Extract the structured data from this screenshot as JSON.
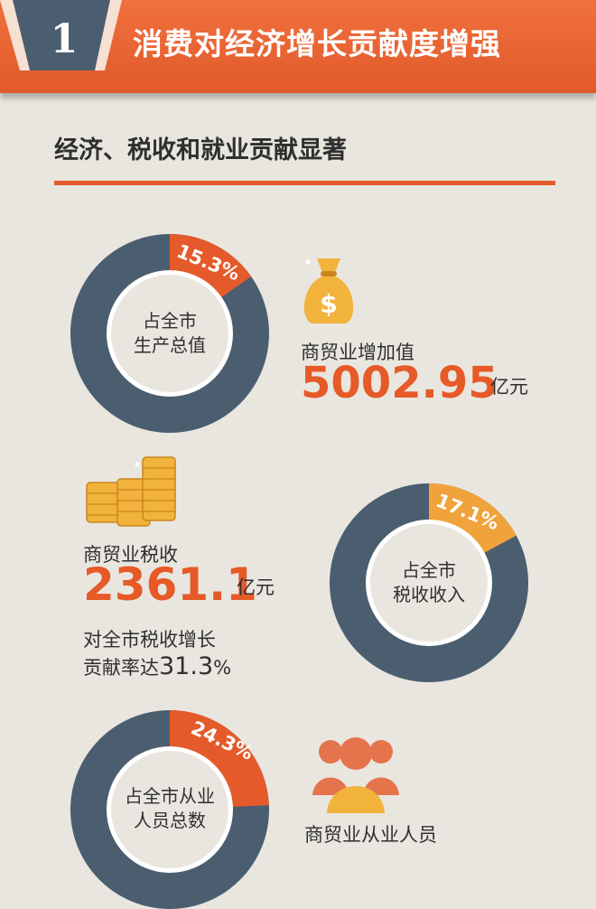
{
  "header": {
    "badge_number": "1",
    "title": "消费对经济增长贡献度增强"
  },
  "section": {
    "title": "经济、税收和就业贡献显著"
  },
  "metrics": [
    {
      "donut_percent_label": "15.3%",
      "share": 0.153,
      "donut_center_line1": "占全市",
      "donut_center_line2": "生产总值",
      "name": "商贸业增加值",
      "value": "5002.95",
      "unit": "亿元"
    },
    {
      "donut_percent_label": "17.1%",
      "share": 0.171,
      "donut_center_line1": "占全市",
      "donut_center_line2": "税收收入",
      "name": "商贸业税收",
      "value": "2361.1",
      "unit": "亿元",
      "note_line1": "对全市税收增长",
      "note_line2_prefix": "贡献率达",
      "note_value": "31.3",
      "note_unit": "%"
    },
    {
      "donut_percent_label": "24.3%",
      "share": 0.243,
      "donut_center_line1": "占全市从业",
      "donut_center_line2": "人员总数",
      "name": "商贸业从业人员"
    }
  ],
  "colors": {
    "accent": "#e35b2c",
    "ring": "#4b5e70",
    "slice_orange": "#e55a2a",
    "slice_gold": "#f0a33a",
    "background": "#e9e6df"
  },
  "icons": [
    "money-bag-icon",
    "coin-stacks-icon",
    "people-icon"
  ]
}
